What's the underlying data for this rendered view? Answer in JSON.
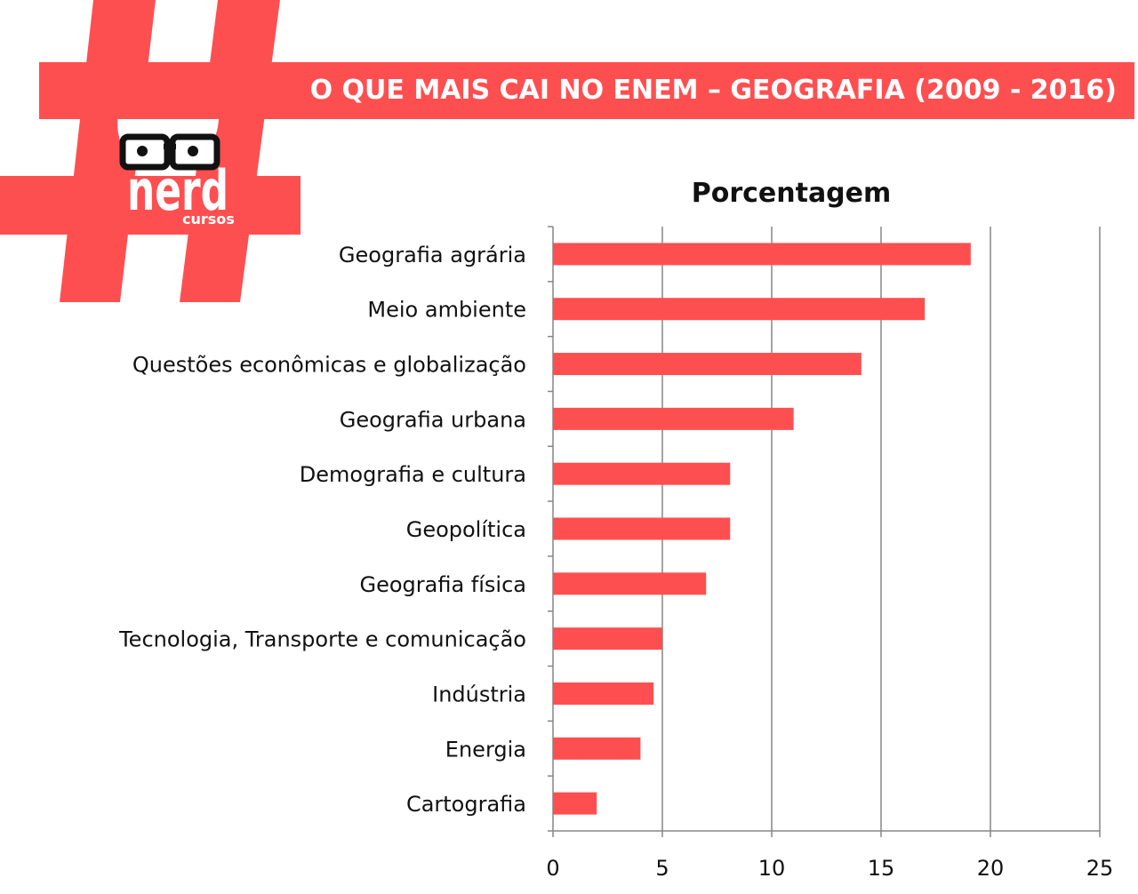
{
  "header": {
    "title": "O QUE MAIS CAI NO ENEM – GEOGRAFIA (2009 - 2016)"
  },
  "logo": {
    "brand": "nerd",
    "sub": "cursos",
    "icon": "hashtag-nerd-avatar-icon"
  },
  "colors": {
    "accent": "#fe4f50",
    "bar": "#fe4f50",
    "grid": "#868686",
    "text": "#111111"
  },
  "chart_data": {
    "type": "bar",
    "orientation": "horizontal",
    "title": "Porcentagem",
    "categories": [
      "Geografia agrária",
      "Meio ambiente",
      "Questões econômicas e globalização",
      "Geografia urbana",
      "Demografia e cultura",
      "Geopolítica",
      "Geografia física",
      "Tecnologia, Transporte e comunicação",
      "Indústria",
      "Energia",
      "Cartografia"
    ],
    "values": [
      19.1,
      17,
      14.1,
      11,
      8.1,
      8.1,
      7,
      5,
      4.6,
      4,
      2
    ],
    "xlim": [
      0,
      25
    ],
    "xticks": [
      "0",
      "5",
      "10",
      "15",
      "20",
      "25"
    ],
    "xtick_values": [
      0,
      5,
      10,
      15,
      20,
      25
    ],
    "grid": true,
    "legend": "none"
  }
}
